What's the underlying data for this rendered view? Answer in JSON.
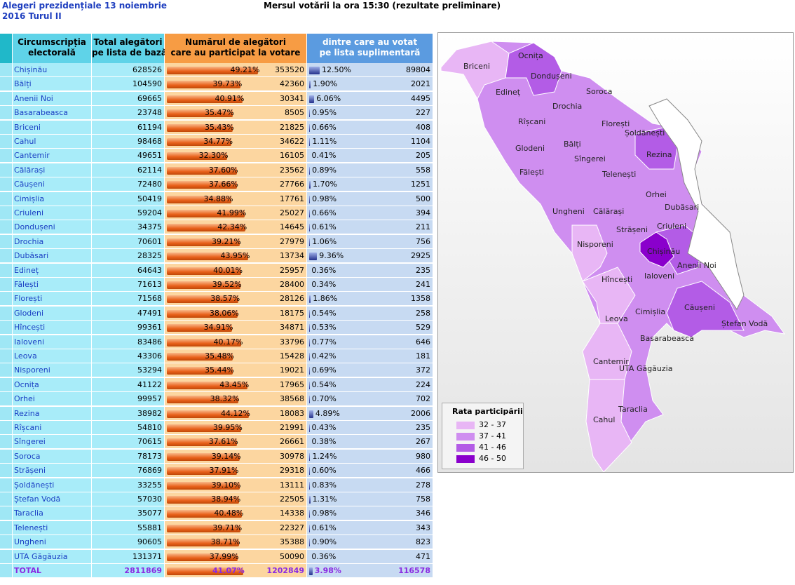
{
  "header": {
    "title_lines": [
      "Alegeri prezidențiale 13 noiembrie",
      "2016 Turul II"
    ],
    "subtitle": "Mersul votării la ora 15:30 (rezultate preliminare)"
  },
  "table": {
    "columns": [
      [
        "Circumscripția",
        "electorală"
      ],
      [
        "Total alegători",
        "pe lista de bază"
      ],
      [
        "Numărul de alegători",
        "care au participat la votare"
      ],
      [
        "dintre care au votat",
        "pe lista suplimentară"
      ]
    ],
    "rows": [
      [
        "Chișinău",
        628526,
        "49.21%",
        353520,
        "12.50%",
        89804
      ],
      [
        "Bălți",
        104590,
        "39.73%",
        42360,
        "1.90%",
        2021
      ],
      [
        "Anenii Noi",
        69665,
        "40.91%",
        30341,
        "6.06%",
        4495
      ],
      [
        "Basarabeasca",
        23748,
        "35.47%",
        8505,
        "0.95%",
        227
      ],
      [
        "Briceni",
        61194,
        "35.43%",
        21825,
        "0.66%",
        408
      ],
      [
        "Cahul",
        98468,
        "34.77%",
        34622,
        "1.11%",
        1104
      ],
      [
        "Cantemir",
        49651,
        "32.30%",
        16105,
        "0.41%",
        205
      ],
      [
        "Călărași",
        62114,
        "37.60%",
        23562,
        "0.89%",
        558
      ],
      [
        "Căușeni",
        72480,
        "37.66%",
        27766,
        "1.70%",
        1251
      ],
      [
        "Cimișlia",
        50419,
        "34.88%",
        17761,
        "0.98%",
        500
      ],
      [
        "Criuleni",
        59204,
        "41.99%",
        25027,
        "0.66%",
        394
      ],
      [
        "Dondușeni",
        34375,
        "42.34%",
        14645,
        "0.61%",
        211
      ],
      [
        "Drochia",
        70601,
        "39.21%",
        27979,
        "1.06%",
        756
      ],
      [
        "Dubăsari",
        28325,
        "43.95%",
        13734,
        "9.36%",
        2925
      ],
      [
        "Edineț",
        64643,
        "40.01%",
        25957,
        "0.36%",
        235
      ],
      [
        "Fălești",
        71613,
        "39.52%",
        28400,
        "0.34%",
        241
      ],
      [
        "Florești",
        71568,
        "38.57%",
        28126,
        "1.86%",
        1358
      ],
      [
        "Glodeni",
        47491,
        "38.06%",
        18175,
        "0.54%",
        258
      ],
      [
        "Hîncești",
        99361,
        "34.91%",
        34871,
        "0.53%",
        529
      ],
      [
        "Ialoveni",
        83486,
        "40.17%",
        33796,
        "0.77%",
        646
      ],
      [
        "Leova",
        43306,
        "35.48%",
        15428,
        "0.42%",
        181
      ],
      [
        "Nisporeni",
        53294,
        "35.44%",
        19021,
        "0.69%",
        372
      ],
      [
        "Ocnița",
        41122,
        "43.45%",
        17965,
        "0.54%",
        224
      ],
      [
        "Orhei",
        99957,
        "38.32%",
        38568,
        "0.70%",
        702
      ],
      [
        "Rezina",
        38982,
        "44.12%",
        18083,
        "4.89%",
        2006
      ],
      [
        "Rîșcani",
        54810,
        "39.95%",
        21991,
        "0.43%",
        235
      ],
      [
        "Sîngerei",
        70615,
        "37.61%",
        26661,
        "0.38%",
        267
      ],
      [
        "Soroca",
        78173,
        "39.14%",
        30978,
        "1.24%",
        980
      ],
      [
        "Strășeni",
        76869,
        "37.91%",
        29318,
        "0.60%",
        466
      ],
      [
        "Șoldănești",
        33255,
        "39.10%",
        13111,
        "0.83%",
        278
      ],
      [
        "Ștefan Vodă",
        57030,
        "38.94%",
        22505,
        "1.31%",
        758
      ],
      [
        "Taraclia",
        35077,
        "40.48%",
        14338,
        "0.98%",
        346
      ],
      [
        "Telenești",
        55881,
        "39.71%",
        22327,
        "0.61%",
        343
      ],
      [
        "Ungheni",
        90605,
        "38.71%",
        35388,
        "0.90%",
        823
      ],
      [
        "UTA Găgăuzia",
        131371,
        "37.99%",
        50090,
        "0.36%",
        471
      ]
    ],
    "total": [
      "TOTAL",
      2811869,
      "41.07%",
      1202849,
      "3.98%",
      116578
    ]
  },
  "map": {
    "labels": [
      "Ocnița",
      "Briceni",
      "Dondușeni",
      "Edineț",
      "Soroca",
      "Drochia",
      "Rîșcani",
      "Florești",
      "Șoldănești",
      "Glodeni",
      "Bălți",
      "Rezina",
      "Sîngerei",
      "Fălești",
      "Telenești",
      "Orhei",
      "Dubăsari",
      "Ungheni",
      "Călărași",
      "Strășeni",
      "Criuleni",
      "Nisporeni",
      "Chișinău",
      "Anenii Noi",
      "Ialoveni",
      "Hîncești",
      "Cimișlia",
      "Căușeni",
      "Leova",
      "Ștefan Vodă",
      "Basarabeasca",
      "Cantemir",
      "UTA Găgăuzia",
      "Taraclia",
      "Cahul"
    ],
    "legend": {
      "title": "Rata participării",
      "items": [
        "32 - 37",
        "37 - 41",
        "41 - 46",
        "46 - 50"
      ]
    }
  }
}
